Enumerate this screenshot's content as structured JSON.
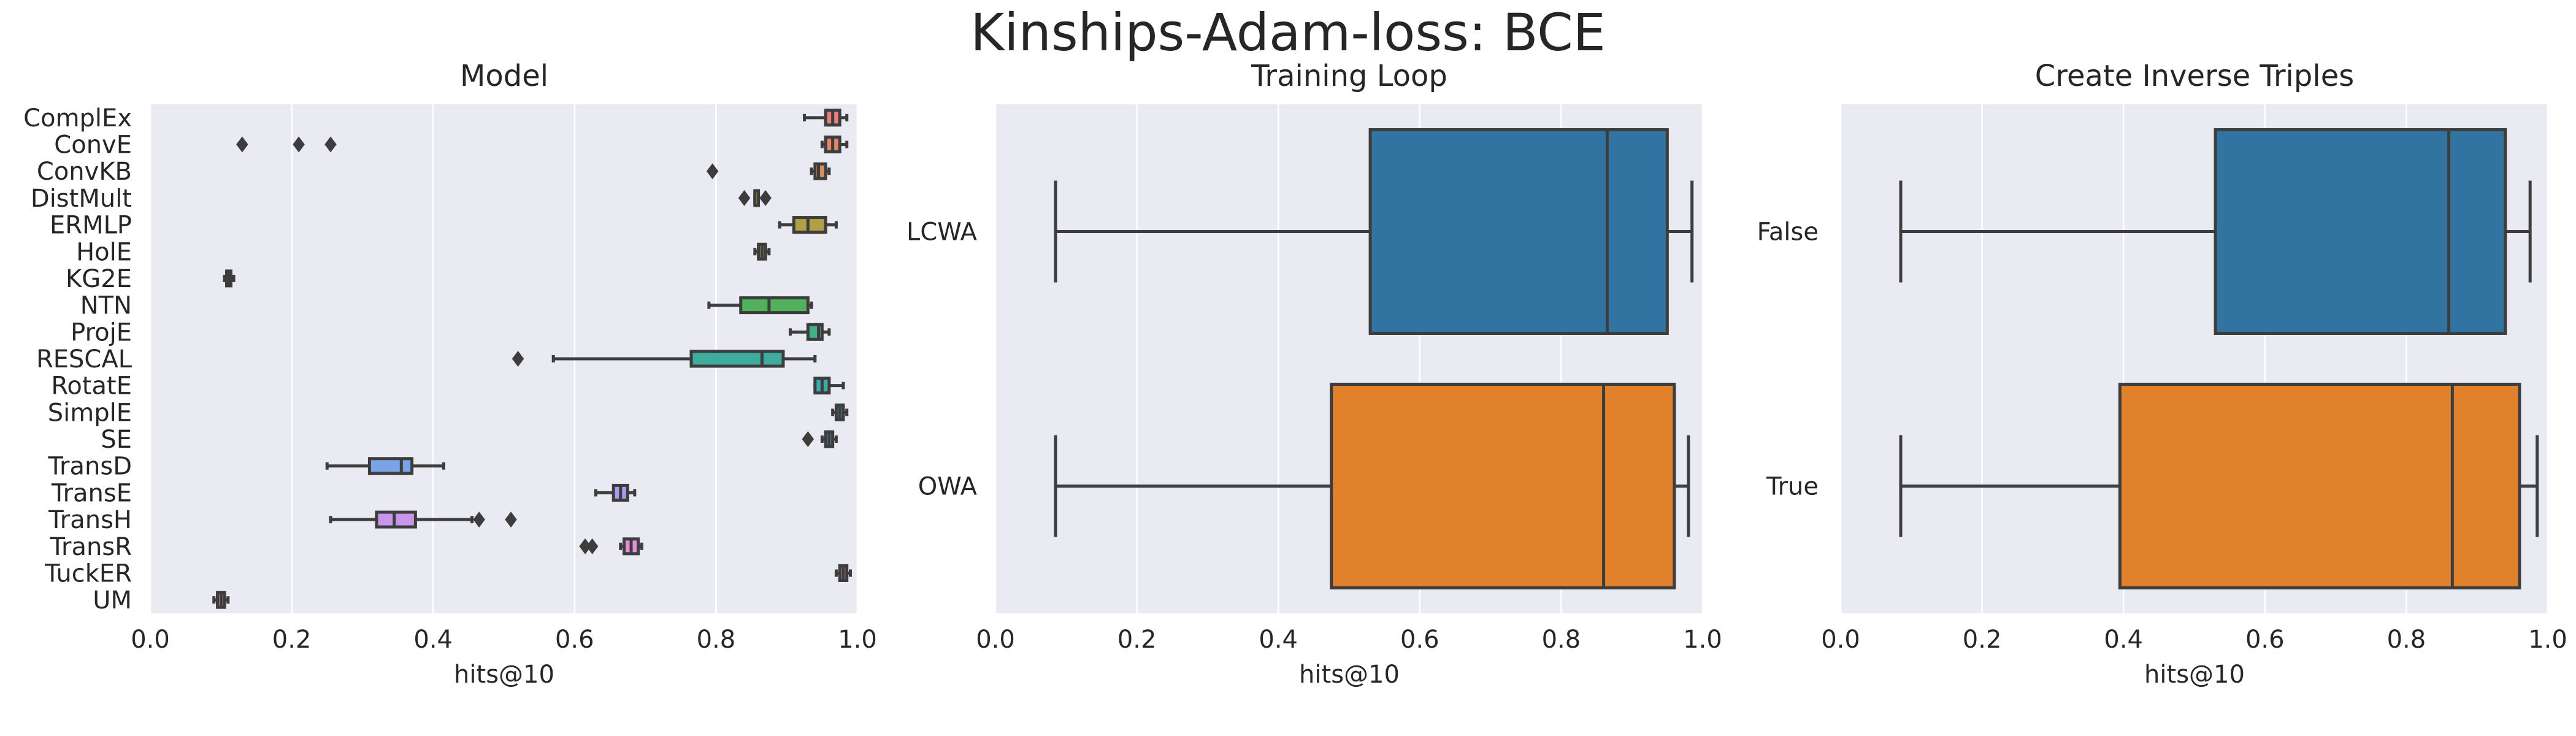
{
  "figure": {
    "suptitle": "Kinships-Adam-loss: BCE",
    "background": "#ffffff",
    "axes_facecolor": "#eaeaf2",
    "grid_color": "#ffffff",
    "line_color": "#3d3d3d"
  },
  "chart_data": [
    {
      "type": "box",
      "orientation": "horizontal",
      "title": "Model",
      "xlabel": "hits@10",
      "ylabel": "",
      "xlim": [
        0.0,
        1.0
      ],
      "xticks": [
        "0.0",
        "0.2",
        "0.4",
        "0.6",
        "0.8",
        "1.0"
      ],
      "grid": "vertical",
      "categories": [
        "ComplEx",
        "ConvE",
        "ConvKB",
        "DistMult",
        "ERMLP",
        "HolE",
        "KG2E",
        "NTN",
        "ProjE",
        "RESCAL",
        "RotatE",
        "SimplE",
        "SE",
        "TransD",
        "TransE",
        "TransH",
        "TransR",
        "TuckER",
        "UM"
      ],
      "boxes": [
        {
          "whislo": 0.925,
          "q1": 0.955,
          "med": 0.965,
          "q3": 0.975,
          "whishi": 0.985,
          "fliers": [],
          "color": "#ea7e7c"
        },
        {
          "whislo": 0.95,
          "q1": 0.955,
          "med": 0.965,
          "q3": 0.975,
          "whishi": 0.985,
          "fliers": [
            0.13,
            0.21,
            0.255
          ],
          "color": "#e2866a"
        },
        {
          "whislo": 0.935,
          "q1": 0.94,
          "med": 0.945,
          "q3": 0.955,
          "whishi": 0.96,
          "fliers": [
            0.795
          ],
          "color": "#d6915c"
        },
        {
          "whislo": 0.855,
          "q1": 0.855,
          "med": 0.855,
          "q3": 0.86,
          "whishi": 0.86,
          "fliers": [
            0.84,
            0.87
          ],
          "color": "#c49a4d"
        },
        {
          "whislo": 0.89,
          "q1": 0.91,
          "med": 0.93,
          "q3": 0.955,
          "whishi": 0.97,
          "fliers": [],
          "color": "#afa047"
        },
        {
          "whislo": 0.855,
          "q1": 0.86,
          "med": 0.865,
          "q3": 0.87,
          "whishi": 0.875,
          "fliers": [],
          "color": "#97a445"
        },
        {
          "whislo": 0.105,
          "q1": 0.108,
          "med": 0.11,
          "q3": 0.114,
          "whishi": 0.118,
          "fliers": [],
          "color": "#7ea847"
        },
        {
          "whislo": 0.79,
          "q1": 0.835,
          "med": 0.875,
          "q3": 0.93,
          "whishi": 0.935,
          "fliers": [],
          "color": "#52b15c"
        },
        {
          "whislo": 0.905,
          "q1": 0.93,
          "med": 0.945,
          "q3": 0.95,
          "whishi": 0.96,
          "fliers": [],
          "color": "#3fb088"
        },
        {
          "whislo": 0.57,
          "q1": 0.765,
          "med": 0.865,
          "q3": 0.895,
          "whishi": 0.94,
          "fliers": [
            0.52
          ],
          "color": "#3ead9d"
        },
        {
          "whislo": 0.94,
          "q1": 0.94,
          "med": 0.95,
          "q3": 0.96,
          "whishi": 0.98,
          "fliers": [],
          "color": "#3dabac"
        },
        {
          "whislo": 0.965,
          "q1": 0.97,
          "med": 0.975,
          "q3": 0.98,
          "whishi": 0.985,
          "fliers": [],
          "color": "#3ea9ba"
        },
        {
          "whislo": 0.95,
          "q1": 0.955,
          "med": 0.96,
          "q3": 0.965,
          "whishi": 0.97,
          "fliers": [
            0.93
          ],
          "color": "#45a6c7"
        },
        {
          "whislo": 0.25,
          "q1": 0.31,
          "med": 0.355,
          "q3": 0.37,
          "whishi": 0.415,
          "fliers": [],
          "color": "#7aa3e6"
        },
        {
          "whislo": 0.63,
          "q1": 0.655,
          "med": 0.665,
          "q3": 0.675,
          "whishi": 0.685,
          "fliers": [],
          "color": "#a99cee"
        },
        {
          "whislo": 0.255,
          "q1": 0.32,
          "med": 0.345,
          "q3": 0.375,
          "whishi": 0.455,
          "fliers": [
            0.465,
            0.51
          ],
          "color": "#c895ea"
        },
        {
          "whislo": 0.665,
          "q1": 0.67,
          "med": 0.68,
          "q3": 0.69,
          "whishi": 0.695,
          "fliers": [
            0.615,
            0.625
          ],
          "color": "#e38ed8"
        },
        {
          "whislo": 0.97,
          "q1": 0.975,
          "med": 0.98,
          "q3": 0.985,
          "whishi": 0.99,
          "fliers": [],
          "color": "#e98bbd"
        },
        {
          "whislo": 0.09,
          "q1": 0.095,
          "med": 0.1,
          "q3": 0.105,
          "whishi": 0.11,
          "fliers": [],
          "color": "#ec8a9e"
        }
      ]
    },
    {
      "type": "box",
      "orientation": "horizontal",
      "title": "Training Loop",
      "xlabel": "hits@10",
      "ylabel": "",
      "xlim": [
        0.0,
        1.0
      ],
      "xticks": [
        "0.0",
        "0.2",
        "0.4",
        "0.6",
        "0.8",
        "1.0"
      ],
      "grid": "vertical",
      "categories": [
        "LCWA",
        "OWA"
      ],
      "boxes": [
        {
          "whislo": 0.085,
          "q1": 0.53,
          "med": 0.865,
          "q3": 0.95,
          "whishi": 0.985,
          "fliers": [],
          "color": "#3274a1"
        },
        {
          "whislo": 0.085,
          "q1": 0.475,
          "med": 0.86,
          "q3": 0.96,
          "whishi": 0.98,
          "fliers": [],
          "color": "#e1812c"
        }
      ]
    },
    {
      "type": "box",
      "orientation": "horizontal",
      "title": "Create Inverse Triples",
      "xlabel": "hits@10",
      "ylabel": "",
      "xlim": [
        0.0,
        1.0
      ],
      "xticks": [
        "0.0",
        "0.2",
        "0.4",
        "0.6",
        "0.8",
        "1.0"
      ],
      "grid": "vertical",
      "categories": [
        "False",
        "True"
      ],
      "boxes": [
        {
          "whislo": 0.085,
          "q1": 0.53,
          "med": 0.86,
          "q3": 0.94,
          "whishi": 0.975,
          "fliers": [],
          "color": "#3274a1"
        },
        {
          "whislo": 0.085,
          "q1": 0.395,
          "med": 0.865,
          "q3": 0.96,
          "whishi": 0.985,
          "fliers": [],
          "color": "#e1812c"
        }
      ]
    }
  ]
}
